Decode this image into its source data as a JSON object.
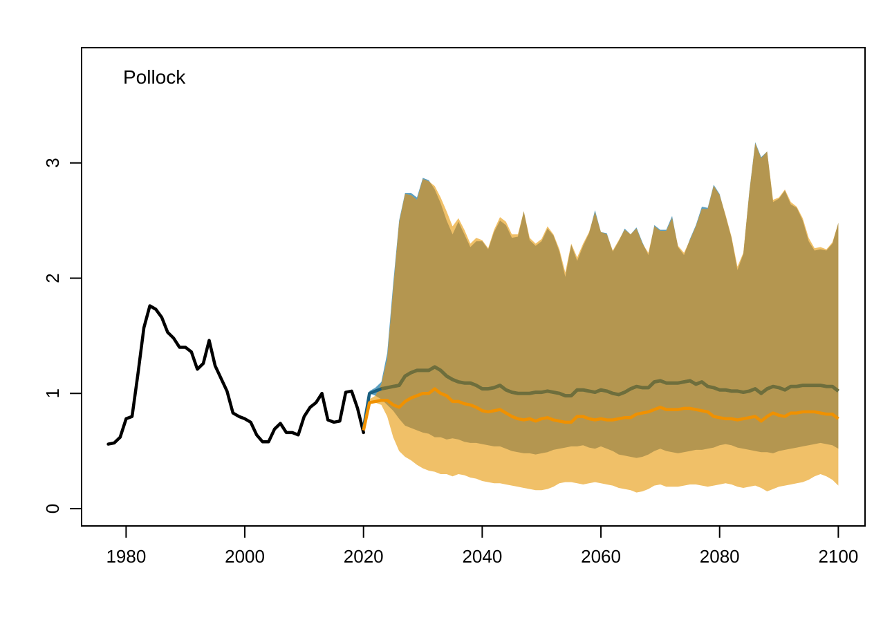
{
  "chart_data": {
    "type": "line",
    "title": "Pollock",
    "xlabel": "",
    "ylabel": "",
    "xlim": [
      1972.5,
      2104.5
    ],
    "ylim": [
      -0.15,
      4.0
    ],
    "x_ticks": [
      1980,
      2000,
      2020,
      2040,
      2060,
      2080,
      2100
    ],
    "y_ticks": [
      0,
      1,
      2,
      3
    ],
    "grid": false,
    "legend": "none",
    "colors": {
      "historical": "#000000",
      "scenario_a_line": "#1a5f80",
      "scenario_a_band": "#5b9fc0",
      "scenario_b_line": "#f09100",
      "scenario_b_band": "#f0c068",
      "overlap_band": "#b49650",
      "scenario_a_overlap_line": "#6e6e3c"
    },
    "historical": {
      "x": [
        1977,
        1978,
        1979,
        1980,
        1981,
        1982,
        1983,
        1984,
        1985,
        1986,
        1987,
        1988,
        1989,
        1990,
        1991,
        1992,
        1993,
        1994,
        1995,
        1996,
        1997,
        1998,
        1999,
        2000,
        2001,
        2002,
        2003,
        2004,
        2005,
        2006,
        2007,
        2008,
        2009,
        2010,
        2011,
        2012,
        2013,
        2014,
        2015,
        2016,
        2017,
        2018,
        2019,
        2020
      ],
      "y": [
        0.56,
        0.57,
        0.62,
        0.78,
        0.8,
        1.17,
        1.57,
        1.76,
        1.73,
        1.66,
        1.53,
        1.48,
        1.4,
        1.4,
        1.36,
        1.21,
        1.26,
        1.46,
        1.24,
        1.13,
        1.02,
        0.83,
        0.8,
        0.78,
        0.75,
        0.64,
        0.58,
        0.58,
        0.69,
        0.74,
        0.66,
        0.66,
        0.64,
        0.8,
        0.88,
        0.92,
        1.0,
        0.77,
        0.75,
        0.76,
        1.01,
        1.02,
        0.87,
        0.66
      ]
    },
    "series": [
      {
        "x": [
          2020,
          2021,
          2022,
          2023,
          2024,
          2025,
          2026,
          2027,
          2028,
          2029,
          2030,
          2031,
          2032,
          2033,
          2034,
          2035,
          2036,
          2037,
          2038,
          2039,
          2040,
          2041,
          2042,
          2043,
          2044,
          2045,
          2046,
          2047,
          2048,
          2049,
          2050,
          2051,
          2052,
          2053,
          2054,
          2055,
          2056,
          2057,
          2058,
          2059,
          2060,
          2061,
          2062,
          2063,
          2064,
          2065,
          2066,
          2067,
          2068,
          2069,
          2070,
          2071,
          2072,
          2073,
          2074,
          2075,
          2076,
          2077,
          2078,
          2079,
          2080,
          2081,
          2082,
          2083,
          2084,
          2085,
          2086,
          2087,
          2088,
          2089,
          2090,
          2091,
          2092,
          2093,
          2094,
          2095,
          2096,
          2097,
          2098,
          2099,
          2100
        ],
        "median": [
          0.7,
          1.0,
          1.02,
          1.04,
          1.05,
          1.06,
          1.07,
          1.15,
          1.18,
          1.2,
          1.2,
          1.2,
          1.23,
          1.2,
          1.15,
          1.12,
          1.1,
          1.09,
          1.09,
          1.07,
          1.04,
          1.04,
          1.05,
          1.07,
          1.03,
          1.01,
          1.0,
          1.0,
          1.0,
          1.01,
          1.01,
          1.02,
          1.01,
          1.0,
          0.98,
          0.98,
          1.03,
          1.03,
          1.02,
          1.01,
          1.03,
          1.02,
          1.0,
          0.99,
          1.01,
          1.04,
          1.06,
          1.05,
          1.05,
          1.1,
          1.11,
          1.09,
          1.09,
          1.09,
          1.1,
          1.11,
          1.08,
          1.1,
          1.06,
          1.05,
          1.03,
          1.03,
          1.02,
          1.02,
          1.01,
          1.02,
          1.04,
          1.0,
          1.04,
          1.06,
          1.05,
          1.03,
          1.06,
          1.06,
          1.07,
          1.07,
          1.07,
          1.07,
          1.06,
          1.06,
          1.02
        ],
        "lower": [
          0.7,
          1.0,
          0.98,
          0.95,
          0.9,
          0.85,
          0.78,
          0.72,
          0.7,
          0.68,
          0.66,
          0.65,
          0.62,
          0.62,
          0.6,
          0.61,
          0.6,
          0.58,
          0.57,
          0.57,
          0.56,
          0.55,
          0.54,
          0.54,
          0.52,
          0.5,
          0.49,
          0.48,
          0.48,
          0.47,
          0.48,
          0.49,
          0.51,
          0.52,
          0.53,
          0.54,
          0.54,
          0.55,
          0.53,
          0.52,
          0.54,
          0.52,
          0.5,
          0.47,
          0.46,
          0.45,
          0.44,
          0.45,
          0.47,
          0.5,
          0.52,
          0.5,
          0.49,
          0.48,
          0.49,
          0.5,
          0.51,
          0.51,
          0.52,
          0.53,
          0.55,
          0.56,
          0.55,
          0.53,
          0.52,
          0.51,
          0.5,
          0.49,
          0.49,
          0.48,
          0.5,
          0.51,
          0.52,
          0.53,
          0.54,
          0.55,
          0.56,
          0.57,
          0.56,
          0.55,
          0.52
        ],
        "upper": [
          0.7,
          1.02,
          1.05,
          1.1,
          1.35,
          1.95,
          2.5,
          2.74,
          2.74,
          2.7,
          2.87,
          2.85,
          2.77,
          2.65,
          2.5,
          2.38,
          2.49,
          2.38,
          2.27,
          2.32,
          2.32,
          2.25,
          2.4,
          2.5,
          2.46,
          2.35,
          2.36,
          2.58,
          2.33,
          2.28,
          2.32,
          2.43,
          2.37,
          2.23,
          2.01,
          2.29,
          2.15,
          2.28,
          2.39,
          2.59,
          2.4,
          2.39,
          2.23,
          2.32,
          2.43,
          2.38,
          2.44,
          2.31,
          2.2,
          2.46,
          2.42,
          2.42,
          2.54,
          2.27,
          2.2,
          2.34,
          2.46,
          2.62,
          2.61,
          2.81,
          2.73,
          2.54,
          2.35,
          2.07,
          2.21,
          2.75,
          3.18,
          3.05,
          3.1,
          2.66,
          2.69,
          2.76,
          2.64,
          2.61,
          2.5,
          2.32,
          2.24,
          2.25,
          2.24,
          2.3,
          2.48
        ]
      },
      {
        "x": [
          2020,
          2021,
          2022,
          2023,
          2024,
          2025,
          2026,
          2027,
          2028,
          2029,
          2030,
          2031,
          2032,
          2033,
          2034,
          2035,
          2036,
          2037,
          2038,
          2039,
          2040,
          2041,
          2042,
          2043,
          2044,
          2045,
          2046,
          2047,
          2048,
          2049,
          2050,
          2051,
          2052,
          2053,
          2054,
          2055,
          2056,
          2057,
          2058,
          2059,
          2060,
          2061,
          2062,
          2063,
          2064,
          2065,
          2066,
          2067,
          2068,
          2069,
          2070,
          2071,
          2072,
          2073,
          2074,
          2075,
          2076,
          2077,
          2078,
          2079,
          2080,
          2081,
          2082,
          2083,
          2084,
          2085,
          2086,
          2087,
          2088,
          2089,
          2090,
          2091,
          2092,
          2093,
          2094,
          2095,
          2096,
          2097,
          2098,
          2099,
          2100
        ],
        "median": [
          0.68,
          0.92,
          0.93,
          0.94,
          0.94,
          0.9,
          0.88,
          0.93,
          0.96,
          0.98,
          1.0,
          1.0,
          1.04,
          1.0,
          0.98,
          0.93,
          0.93,
          0.91,
          0.9,
          0.88,
          0.85,
          0.84,
          0.85,
          0.86,
          0.83,
          0.8,
          0.78,
          0.77,
          0.78,
          0.76,
          0.78,
          0.79,
          0.77,
          0.76,
          0.75,
          0.75,
          0.8,
          0.8,
          0.78,
          0.77,
          0.78,
          0.77,
          0.77,
          0.78,
          0.79,
          0.79,
          0.82,
          0.83,
          0.84,
          0.86,
          0.88,
          0.86,
          0.86,
          0.86,
          0.87,
          0.87,
          0.86,
          0.85,
          0.84,
          0.8,
          0.79,
          0.78,
          0.78,
          0.77,
          0.78,
          0.79,
          0.8,
          0.76,
          0.8,
          0.83,
          0.81,
          0.8,
          0.83,
          0.83,
          0.84,
          0.84,
          0.84,
          0.83,
          0.82,
          0.82,
          0.78
        ],
        "lower": [
          0.68,
          0.92,
          0.92,
          0.9,
          0.8,
          0.62,
          0.5,
          0.45,
          0.42,
          0.38,
          0.35,
          0.33,
          0.32,
          0.3,
          0.3,
          0.28,
          0.3,
          0.29,
          0.27,
          0.26,
          0.24,
          0.23,
          0.22,
          0.22,
          0.21,
          0.2,
          0.19,
          0.18,
          0.17,
          0.16,
          0.16,
          0.17,
          0.19,
          0.22,
          0.23,
          0.23,
          0.22,
          0.21,
          0.22,
          0.23,
          0.22,
          0.21,
          0.2,
          0.18,
          0.17,
          0.16,
          0.14,
          0.15,
          0.17,
          0.2,
          0.21,
          0.19,
          0.19,
          0.19,
          0.2,
          0.21,
          0.21,
          0.2,
          0.19,
          0.2,
          0.21,
          0.22,
          0.21,
          0.19,
          0.18,
          0.19,
          0.2,
          0.18,
          0.15,
          0.17,
          0.19,
          0.2,
          0.21,
          0.22,
          0.23,
          0.25,
          0.28,
          0.3,
          0.28,
          0.25,
          0.2
        ],
        "upper": [
          0.68,
          0.95,
          0.98,
          1.08,
          1.3,
          1.9,
          2.48,
          2.73,
          2.72,
          2.68,
          2.86,
          2.84,
          2.8,
          2.7,
          2.58,
          2.45,
          2.52,
          2.42,
          2.3,
          2.35,
          2.33,
          2.26,
          2.42,
          2.53,
          2.49,
          2.38,
          2.38,
          2.58,
          2.35,
          2.3,
          2.34,
          2.45,
          2.38,
          2.25,
          2.05,
          2.3,
          2.18,
          2.3,
          2.4,
          2.57,
          2.4,
          2.38,
          2.24,
          2.33,
          2.42,
          2.38,
          2.43,
          2.3,
          2.22,
          2.45,
          2.41,
          2.41,
          2.52,
          2.28,
          2.22,
          2.33,
          2.45,
          2.6,
          2.6,
          2.8,
          2.72,
          2.55,
          2.36,
          2.1,
          2.22,
          2.74,
          3.17,
          3.04,
          3.1,
          2.68,
          2.7,
          2.77,
          2.66,
          2.62,
          2.52,
          2.35,
          2.26,
          2.27,
          2.25,
          2.31,
          2.48
        ]
      }
    ]
  }
}
